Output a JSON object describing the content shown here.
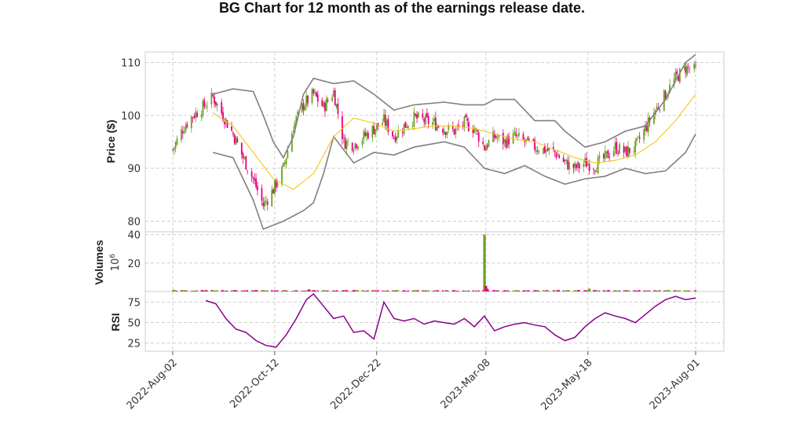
{
  "chart_data": {
    "type": "candlestick",
    "title": "BG Chart for 12 month as of the earnings release date.",
    "x_tick_labels": [
      "2022-Aug-02",
      "2022-Oct-12",
      "2022-Dec-22",
      "2023-Mar-08",
      "2023-May-18",
      "2023-Aug-01"
    ],
    "x_range": [
      "2022-08-02",
      "2023-08-01"
    ],
    "colors": {
      "up": "#6aa121",
      "down": "#e6007e",
      "sma": "#f5c518",
      "bollinger": "#808080",
      "rsi": "#8b008b",
      "grid": "#cfcfcf"
    },
    "price_panel": {
      "ylabel": "Price ($)",
      "ylim": [
        78,
        112
      ],
      "yticks": [
        80,
        90,
        100,
        110
      ],
      "close_series": [
        [
          "2022-08-02",
          93.5
        ],
        [
          "2022-08-09",
          97.5
        ],
        [
          "2022-08-16",
          100.0
        ],
        [
          "2022-08-23",
          101.5
        ],
        [
          "2022-08-30",
          103.5
        ],
        [
          "2022-09-06",
          100.0
        ],
        [
          "2022-09-13",
          96.5
        ],
        [
          "2022-09-20",
          92.0
        ],
        [
          "2022-09-27",
          88.0
        ],
        [
          "2022-10-04",
          83.0
        ],
        [
          "2022-10-11",
          86.0
        ],
        [
          "2022-10-18",
          90.0
        ],
        [
          "2022-10-25",
          98.0
        ],
        [
          "2022-11-01",
          102.0
        ],
        [
          "2022-11-08",
          104.0
        ],
        [
          "2022-11-15",
          101.5
        ],
        [
          "2022-11-22",
          104.5
        ],
        [
          "2022-11-29",
          95.0
        ],
        [
          "2022-12-06",
          94.5
        ],
        [
          "2022-12-13",
          96.0
        ],
        [
          "2022-12-20",
          97.5
        ],
        [
          "2022-12-27",
          99.0
        ],
        [
          "2023-01-03",
          96.0
        ],
        [
          "2023-01-10",
          98.0
        ],
        [
          "2023-01-17",
          99.5
        ],
        [
          "2023-01-24",
          99.0
        ],
        [
          "2023-01-31",
          98.5
        ],
        [
          "2023-02-07",
          97.5
        ],
        [
          "2023-02-14",
          97.0
        ],
        [
          "2023-02-21",
          98.5
        ],
        [
          "2023-02-28",
          97.5
        ],
        [
          "2023-03-07",
          94.0
        ],
        [
          "2023-03-14",
          96.0
        ],
        [
          "2023-03-21",
          95.0
        ],
        [
          "2023-03-28",
          96.0
        ],
        [
          "2023-04-04",
          95.0
        ],
        [
          "2023-04-11",
          94.0
        ],
        [
          "2023-04-18",
          93.5
        ],
        [
          "2023-04-25",
          93.0
        ],
        [
          "2023-05-02",
          91.0
        ],
        [
          "2023-05-09",
          90.0
        ],
        [
          "2023-05-16",
          91.0
        ],
        [
          "2023-05-23",
          90.5
        ],
        [
          "2023-05-30",
          92.0
        ],
        [
          "2023-06-06",
          94.0
        ],
        [
          "2023-06-13",
          93.0
        ],
        [
          "2023-06-20",
          94.0
        ],
        [
          "2023-06-27",
          97.5
        ],
        [
          "2023-07-04",
          101.0
        ],
        [
          "2023-07-11",
          104.0
        ],
        [
          "2023-07-18",
          107.0
        ],
        [
          "2023-07-25",
          109.0
        ],
        [
          "2023-08-01",
          108.5
        ]
      ],
      "sma_series": [
        [
          "2022-08-30",
          100.5
        ],
        [
          "2022-09-13",
          98.0
        ],
        [
          "2022-09-27",
          93.0
        ],
        [
          "2022-10-11",
          88.0
        ],
        [
          "2022-10-25",
          86.0
        ],
        [
          "2022-11-08",
          89.0
        ],
        [
          "2022-11-22",
          96.0
        ],
        [
          "2022-12-06",
          99.5
        ],
        [
          "2022-12-20",
          98.5
        ],
        [
          "2023-01-03",
          97.0
        ],
        [
          "2023-01-17",
          97.5
        ],
        [
          "2023-01-31",
          98.0
        ],
        [
          "2023-02-14",
          98.0
        ],
        [
          "2023-02-28",
          97.5
        ],
        [
          "2023-03-14",
          96.5
        ],
        [
          "2023-03-28",
          95.5
        ],
        [
          "2023-04-11",
          95.0
        ],
        [
          "2023-04-25",
          93.5
        ],
        [
          "2023-05-09",
          92.0
        ],
        [
          "2023-05-23",
          91.0
        ],
        [
          "2023-06-06",
          91.5
        ],
        [
          "2023-06-20",
          92.5
        ],
        [
          "2023-07-04",
          95.0
        ],
        [
          "2023-07-18",
          99.0
        ],
        [
          "2023-08-01",
          104.0
        ]
      ],
      "bollinger_upper": [
        [
          "2022-08-30",
          104.0
        ],
        [
          "2022-09-13",
          105.0
        ],
        [
          "2022-09-27",
          104.5
        ],
        [
          "2022-10-04",
          100.0
        ],
        [
          "2022-10-11",
          95.0
        ],
        [
          "2022-10-18",
          92.0
        ],
        [
          "2022-10-25",
          96.0
        ],
        [
          "2022-11-01",
          104.0
        ],
        [
          "2022-11-08",
          107.0
        ],
        [
          "2022-11-22",
          106.0
        ],
        [
          "2022-12-06",
          106.5
        ],
        [
          "2022-12-20",
          104.0
        ],
        [
          "2023-01-03",
          101.0
        ],
        [
          "2023-01-17",
          102.0
        ],
        [
          "2023-02-07",
          102.5
        ],
        [
          "2023-02-21",
          102.0
        ],
        [
          "2023-03-07",
          102.0
        ],
        [
          "2023-03-14",
          103.0
        ],
        [
          "2023-03-28",
          103.0
        ],
        [
          "2023-04-11",
          99.0
        ],
        [
          "2023-04-25",
          99.0
        ],
        [
          "2023-05-02",
          97.0
        ],
        [
          "2023-05-16",
          94.0
        ],
        [
          "2023-05-30",
          95.0
        ],
        [
          "2023-06-13",
          97.0
        ],
        [
          "2023-06-27",
          98.0
        ],
        [
          "2023-07-11",
          103.0
        ],
        [
          "2023-07-25",
          110.0
        ],
        [
          "2023-08-01",
          111.5
        ]
      ],
      "bollinger_lower": [
        [
          "2022-08-30",
          93.0
        ],
        [
          "2022-09-13",
          92.0
        ],
        [
          "2022-09-27",
          84.0
        ],
        [
          "2022-10-04",
          78.5
        ],
        [
          "2022-10-18",
          80.0
        ],
        [
          "2022-11-01",
          82.0
        ],
        [
          "2022-11-08",
          83.5
        ],
        [
          "2022-11-15",
          89.0
        ],
        [
          "2022-11-22",
          96.0
        ],
        [
          "2022-12-06",
          91.0
        ],
        [
          "2022-12-20",
          93.0
        ],
        [
          "2023-01-03",
          92.5
        ],
        [
          "2023-01-17",
          94.0
        ],
        [
          "2023-02-07",
          95.0
        ],
        [
          "2023-02-21",
          94.0
        ],
        [
          "2023-03-07",
          90.0
        ],
        [
          "2023-03-21",
          89.0
        ],
        [
          "2023-04-04",
          90.5
        ],
        [
          "2023-04-18",
          88.5
        ],
        [
          "2023-05-02",
          87.0
        ],
        [
          "2023-05-16",
          88.0
        ],
        [
          "2023-05-30",
          88.5
        ],
        [
          "2023-06-13",
          90.0
        ],
        [
          "2023-06-27",
          89.0
        ],
        [
          "2023-07-11",
          89.5
        ],
        [
          "2023-07-25",
          93.0
        ],
        [
          "2023-08-01",
          96.5
        ]
      ]
    },
    "volume_panel": {
      "ylabel": "Volumes",
      "unit_label": "10",
      "unit_exponent": "6",
      "ylim": [
        0,
        42
      ],
      "yticks": [
        20,
        40
      ],
      "spikes": [
        {
          "date": "2023-03-07",
          "value": 40,
          "direction": "up"
        },
        {
          "date": "2023-03-08",
          "value": 4,
          "direction": "down"
        },
        {
          "date": "2023-03-09",
          "value": 2,
          "direction": "down"
        },
        {
          "date": "2023-05-19",
          "value": 2,
          "direction": "up"
        },
        {
          "date": "2022-11-05",
          "value": 1.5,
          "direction": "down"
        },
        {
          "date": "2022-08-03",
          "value": 1.2,
          "direction": "up"
        }
      ],
      "baseline_value": 0.8
    },
    "rsi_panel": {
      "ylabel": "RSI",
      "ylim": [
        15,
        88
      ],
      "yticks": [
        25,
        50,
        75
      ],
      "series": [
        [
          "2022-08-25",
          77
        ],
        [
          "2022-09-01",
          73
        ],
        [
          "2022-09-08",
          55
        ],
        [
          "2022-09-15",
          42
        ],
        [
          "2022-09-22",
          38
        ],
        [
          "2022-09-29",
          28
        ],
        [
          "2022-10-06",
          22
        ],
        [
          "2022-10-13",
          20
        ],
        [
          "2022-10-20",
          35
        ],
        [
          "2022-10-27",
          55
        ],
        [
          "2022-11-03",
          78
        ],
        [
          "2022-11-08",
          85
        ],
        [
          "2022-11-15",
          70
        ],
        [
          "2022-11-22",
          55
        ],
        [
          "2022-11-29",
          58
        ],
        [
          "2022-12-06",
          38
        ],
        [
          "2022-12-13",
          40
        ],
        [
          "2022-12-20",
          30
        ],
        [
          "2022-12-27",
          75
        ],
        [
          "2023-01-03",
          55
        ],
        [
          "2023-01-10",
          52
        ],
        [
          "2023-01-17",
          55
        ],
        [
          "2023-01-24",
          48
        ],
        [
          "2023-01-31",
          52
        ],
        [
          "2023-02-07",
          50
        ],
        [
          "2023-02-14",
          48
        ],
        [
          "2023-02-21",
          55
        ],
        [
          "2023-02-28",
          45
        ],
        [
          "2023-03-07",
          58
        ],
        [
          "2023-03-14",
          40
        ],
        [
          "2023-03-21",
          45
        ],
        [
          "2023-03-28",
          48
        ],
        [
          "2023-04-04",
          50
        ],
        [
          "2023-04-11",
          47
        ],
        [
          "2023-04-18",
          45
        ],
        [
          "2023-04-25",
          35
        ],
        [
          "2023-05-02",
          28
        ],
        [
          "2023-05-09",
          32
        ],
        [
          "2023-05-16",
          45
        ],
        [
          "2023-05-23",
          55
        ],
        [
          "2023-05-30",
          62
        ],
        [
          "2023-06-06",
          58
        ],
        [
          "2023-06-13",
          55
        ],
        [
          "2023-06-20",
          50
        ],
        [
          "2023-06-27",
          60
        ],
        [
          "2023-07-04",
          70
        ],
        [
          "2023-07-11",
          78
        ],
        [
          "2023-07-18",
          82
        ],
        [
          "2023-07-25",
          78
        ],
        [
          "2023-08-01",
          80
        ]
      ]
    },
    "grid": true
  }
}
